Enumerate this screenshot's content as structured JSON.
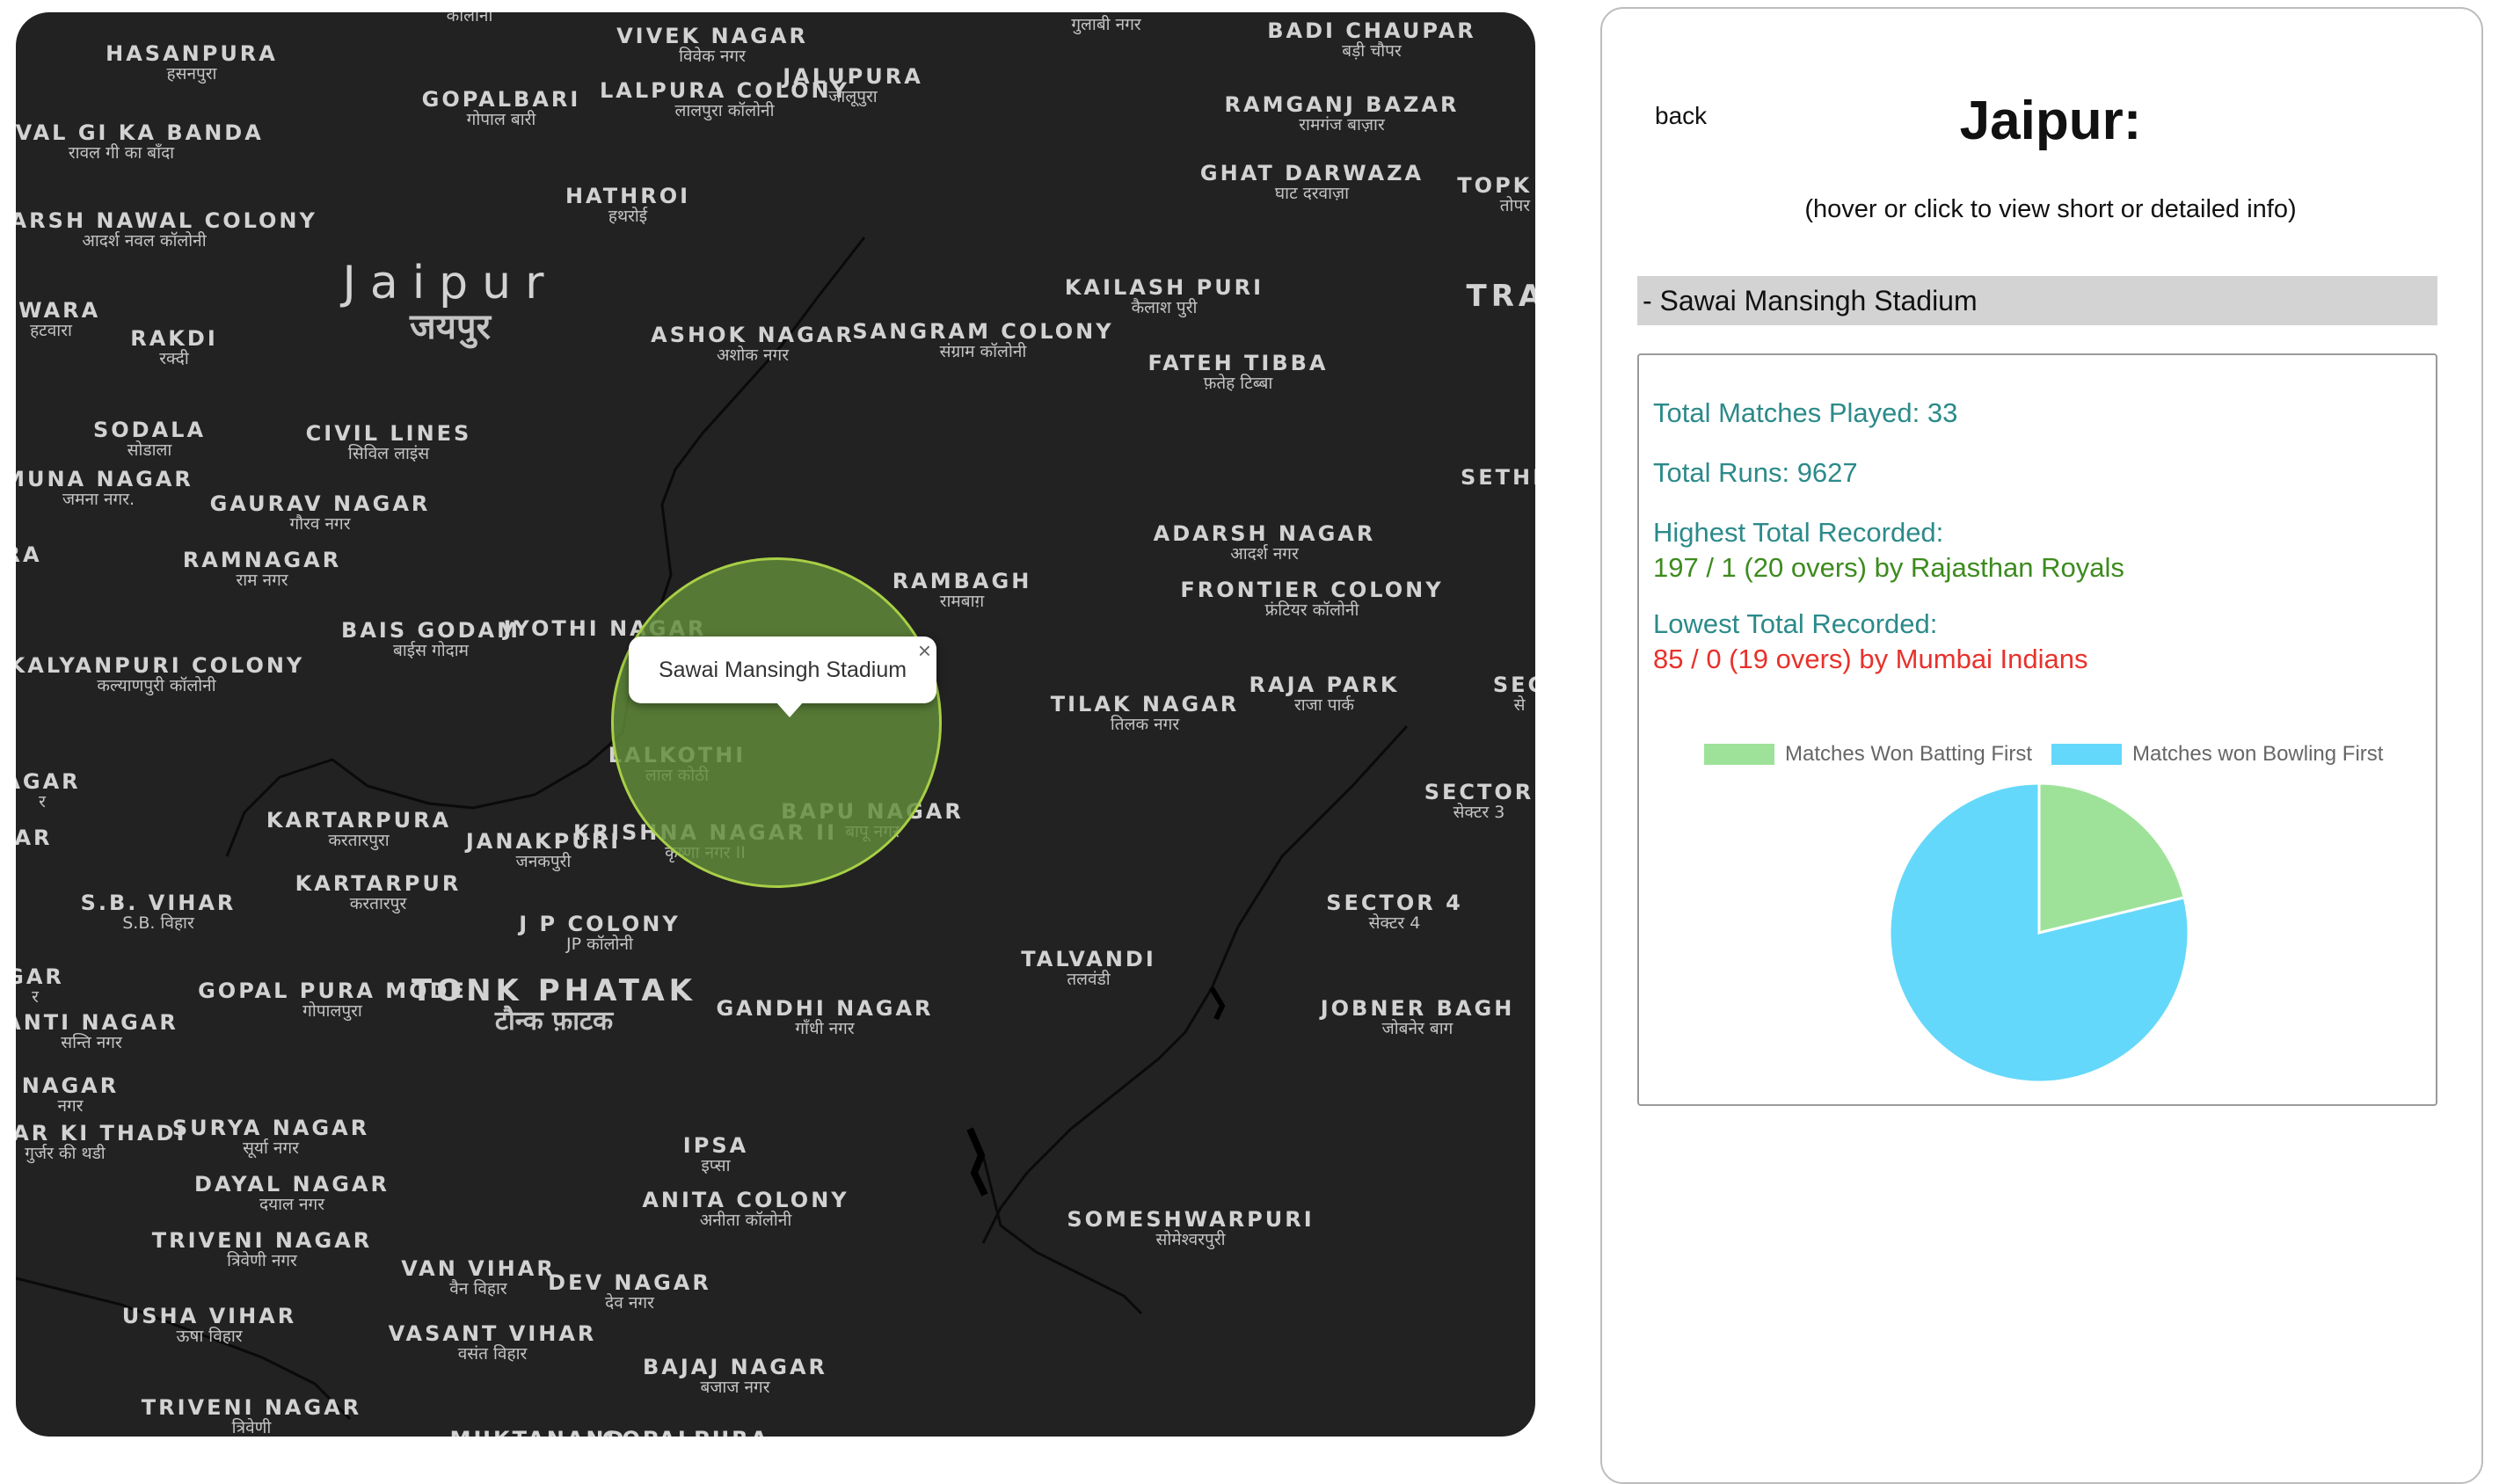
{
  "map": {
    "labels": [
      {
        "en": "",
        "hi": "कॉलोनी"
      },
      {
        "en": "VIVEK NAGAR",
        "hi": "विवेक नगर"
      },
      {
        "en": "",
        "hi": "गुलाबी नगर"
      },
      {
        "en": "BADI CHAUPAR",
        "hi": "बड़ी चौपर"
      },
      {
        "en": "HASANPURA",
        "hi": "हसनपुरा"
      },
      {
        "en": "GOPALBARI",
        "hi": "गोपाल बारी"
      },
      {
        "en": "LALPURA COLONY",
        "hi": "लालपुरा कॉलोनी"
      },
      {
        "en": "JALUPURA",
        "hi": "जालूपुरा"
      },
      {
        "en": "RAMGANJ BAZAR",
        "hi": "रामगंज बाज़ार"
      },
      {
        "en": "RAVAL GI KA BANDA",
        "hi": "रावल गी का बाँदा"
      },
      {
        "en": "GHAT DARWAZA",
        "hi": "घाट दरवाज़ा"
      },
      {
        "en": "TOPK HAZ",
        "hi": "तोपर हज़"
      },
      {
        "en": "HATHROI",
        "hi": "हथरोई"
      },
      {
        "en": "ADARSH NAWAL COLONY",
        "hi": "आदर्श नवल कॉलोनी"
      },
      {
        "en": "Jaipur",
        "hi": "जयपुर"
      },
      {
        "en": "KAILASH PURI",
        "hi": "कैलाश पुरी"
      },
      {
        "en": "TRA N",
        "hi": ""
      },
      {
        "en": "TWARA",
        "hi": "हटवारा"
      },
      {
        "en": "RAKDI",
        "hi": "रक्दी"
      },
      {
        "en": "ASHOK NAGAR",
        "hi": "अशोक नगर"
      },
      {
        "en": "SANGRAM COLONY",
        "hi": "संग्राम कॉलोनी"
      },
      {
        "en": "FATEH TIBBA",
        "hi": "फ़तेह टिब्बा"
      },
      {
        "en": "SODALA",
        "hi": "सोडाला"
      },
      {
        "en": "CIVIL LINES",
        "hi": "सिविल लाइंस"
      },
      {
        "en": "MUNA NAGAR",
        "hi": "जमना नगर."
      },
      {
        "en": "GAURAV NAGAR",
        "hi": "गौरव नगर"
      },
      {
        "en": "SETHI",
        "hi": ""
      },
      {
        "en": "ADARSH NAGAR",
        "hi": "आदर्श नगर"
      },
      {
        "en": "RA",
        "hi": ""
      },
      {
        "en": "RAMNAGAR",
        "hi": "राम नगर"
      },
      {
        "en": "RAMBAGH",
        "hi": "रामबाग़"
      },
      {
        "en": "FRONTIER COLONY",
        "hi": "फ्रंटियर कॉलोनी"
      },
      {
        "en": "BAIS GODAM",
        "hi": "बाईस गोदाम"
      },
      {
        "en": "JYOTHI NAGAR",
        "hi": ""
      },
      {
        "en": "KALYANPURI COLONY",
        "hi": "कल्याणपुरी कॉलोनी"
      },
      {
        "en": "RAJA PARK",
        "hi": "राजा पार्क"
      },
      {
        "en": "SEC",
        "hi": "से"
      },
      {
        "en": "TILAK NAGAR",
        "hi": "तिलक नगर"
      },
      {
        "en": "LALKOTHI",
        "hi": "लाल कोठी"
      },
      {
        "en": "AGAR",
        "hi": "र"
      },
      {
        "en": "SECTOR",
        "hi": "सेक्टर 3"
      },
      {
        "en": "BAPU NAGAR",
        "hi": "बापू नगर"
      },
      {
        "en": "KARTARPURA",
        "hi": "करतारपुरा"
      },
      {
        "en": "AR",
        "hi": ""
      },
      {
        "en": "JANAKPURI",
        "hi": "जनकपुरी"
      },
      {
        "en": "KRISHNA NAGAR II",
        "hi": "कृष्णा नगर II"
      },
      {
        "en": "KARTARPUR",
        "hi": "करतारपुर"
      },
      {
        "en": "S.B. VIHAR",
        "hi": "S.B. विहार"
      },
      {
        "en": "SECTOR 4",
        "hi": "सेक्टर 4"
      },
      {
        "en": "J P COLONY",
        "hi": "JP कॉलोनी"
      },
      {
        "en": "TALVANDI",
        "hi": "तलवंडी"
      },
      {
        "en": "GAR",
        "hi": "र"
      },
      {
        "en": "GOPAL PURA MODE",
        "hi": "गोपालपुरा"
      },
      {
        "en": "TONK PHATAK",
        "hi": "टौन्क फ़ाटक"
      },
      {
        "en": "GANDHI NAGAR",
        "hi": "गाँधी नगर"
      },
      {
        "en": "JOBNER BAGH",
        "hi": "जोबनेर बाग"
      },
      {
        "en": "ANTI NAGAR",
        "hi": "सन्ति नगर"
      },
      {
        "en": "NAGAR",
        "hi": "नगर"
      },
      {
        "en": "SURYA NAGAR",
        "hi": "सूर्या नगर"
      },
      {
        "en": "GURJAR KI THADI",
        "hi": "गुर्जर की थडी"
      },
      {
        "en": "IPSA",
        "hi": "इप्सा"
      },
      {
        "en": "DAYAL NAGAR",
        "hi": "दयाल नगर"
      },
      {
        "en": "ANITA COLONY",
        "hi": "अनीता कॉलोनी"
      },
      {
        "en": "SOMESHWARPURI",
        "hi": "सोमेश्वरपुरी"
      },
      {
        "en": "TRIVENI NAGAR",
        "hi": "त्रिवेणी नगर"
      },
      {
        "en": "VAN VIHAR",
        "hi": "वैन विहार"
      },
      {
        "en": "DEV NAGAR",
        "hi": "देव नगर"
      },
      {
        "en": "USHA VIHAR",
        "hi": "ऊषा विहार"
      },
      {
        "en": "VASANT VIHAR",
        "hi": "वसंत विहार"
      },
      {
        "en": "BAJAJ NAGAR",
        "hi": "बजाज नगर"
      },
      {
        "en": "TRIVENI NAGAR",
        "hi": "त्रिवेणी"
      },
      {
        "en": "MUKTANAND",
        "hi": ""
      },
      {
        "en": "GOPALPURA",
        "hi": ""
      }
    ],
    "popup": {
      "title": "Sawai Mansingh Stadium",
      "close": "×"
    }
  },
  "panel": {
    "back": "back",
    "title": "Jaipur:",
    "hint": "(hover or click to view short or detailed info)",
    "venue": "- Sawai Mansingh Stadium",
    "total_matches": "Total Matches Played: 33",
    "total_runs": "Total Runs: 9627",
    "highest_label": "Highest Total Recorded:",
    "highest_value": "197 / 1 (20 overs) by Rajasthan Royals",
    "lowest_label": "Lowest Total Recorded:",
    "lowest_value": "85 / 0 (19 overs) by Mumbai Indians"
  },
  "colors": {
    "batting_first": "#9ee29a",
    "bowling_first": "#64d8fa",
    "highest": "#3d8b1e",
    "lowest": "#e8312b",
    "stat": "#2c8a8a"
  },
  "chart_data": {
    "type": "pie",
    "categories": [
      "Matches Won Batting First",
      "Matches won Bowling First"
    ],
    "values": [
      7,
      26
    ],
    "legend": "top"
  }
}
